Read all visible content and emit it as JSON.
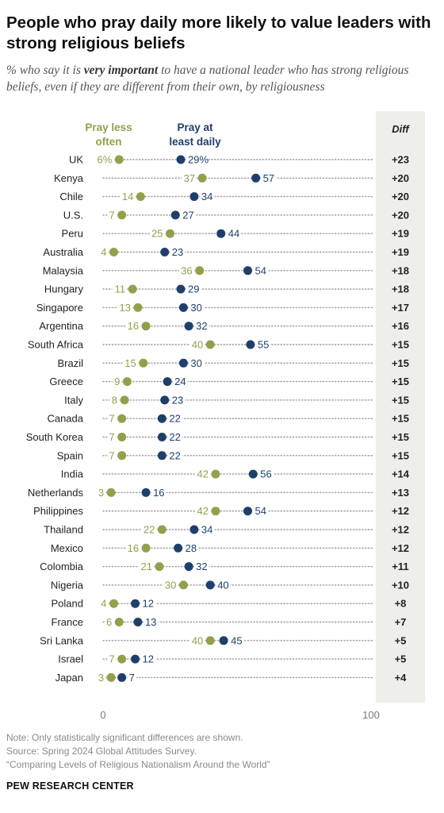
{
  "title": "People who pray daily more likely to value leaders with strong religious beliefs",
  "subtitle_prefix": "% who say it is ",
  "subtitle_emph": "very important",
  "subtitle_suffix": " to have a national leader who has strong religious beliefs, even if they are different from their own, by religiousness",
  "colors": {
    "less": "#959f4b",
    "daily": "#1f3f6b",
    "diff_bg": "#efefea"
  },
  "legend": {
    "less": [
      "Pray less",
      "often"
    ],
    "daily": [
      "Pray at",
      "least daily"
    ],
    "diff": "Diff"
  },
  "chart_data": {
    "type": "dot-plot",
    "xlim": [
      0,
      100
    ],
    "x_ticks": [
      "0",
      "100"
    ],
    "series": [
      {
        "name": "Pray less often",
        "key": "less"
      },
      {
        "name": "Pray at least daily",
        "key": "daily"
      }
    ],
    "rows": [
      {
        "country": "UK",
        "less": 6,
        "daily": 29,
        "less_label": "6%",
        "daily_label": "29%",
        "diff": "+23"
      },
      {
        "country": "Kenya",
        "less": 37,
        "daily": 57,
        "less_label": "37",
        "daily_label": "57",
        "diff": "+20"
      },
      {
        "country": "Chile",
        "less": 14,
        "daily": 34,
        "less_label": "14",
        "daily_label": "34",
        "diff": "+20"
      },
      {
        "country": "U.S.",
        "less": 7,
        "daily": 27,
        "less_label": "7",
        "daily_label": "27",
        "diff": "+20"
      },
      {
        "country": "Peru",
        "less": 25,
        "daily": 44,
        "less_label": "25",
        "daily_label": "44",
        "diff": "+19"
      },
      {
        "country": "Australia",
        "less": 4,
        "daily": 23,
        "less_label": "4",
        "daily_label": "23",
        "diff": "+19"
      },
      {
        "country": "Malaysia",
        "less": 36,
        "daily": 54,
        "less_label": "36",
        "daily_label": "54",
        "diff": "+18"
      },
      {
        "country": "Hungary",
        "less": 11,
        "daily": 29,
        "less_label": "11",
        "daily_label": "29",
        "diff": "+18"
      },
      {
        "country": "Singapore",
        "less": 13,
        "daily": 30,
        "less_label": "13",
        "daily_label": "30",
        "diff": "+17"
      },
      {
        "country": "Argentina",
        "less": 16,
        "daily": 32,
        "less_label": "16",
        "daily_label": "32",
        "diff": "+16"
      },
      {
        "country": "South Africa",
        "less": 40,
        "daily": 55,
        "less_label": "40",
        "daily_label": "55",
        "diff": "+15"
      },
      {
        "country": "Brazil",
        "less": 15,
        "daily": 30,
        "less_label": "15",
        "daily_label": "30",
        "diff": "+15"
      },
      {
        "country": "Greece",
        "less": 9,
        "daily": 24,
        "less_label": "9",
        "daily_label": "24",
        "diff": "+15"
      },
      {
        "country": "Italy",
        "less": 8,
        "daily": 23,
        "less_label": "8",
        "daily_label": "23",
        "diff": "+15"
      },
      {
        "country": "Canada",
        "less": 7,
        "daily": 22,
        "less_label": "7",
        "daily_label": "22",
        "diff": "+15"
      },
      {
        "country": "South Korea",
        "less": 7,
        "daily": 22,
        "less_label": "7",
        "daily_label": "22",
        "diff": "+15"
      },
      {
        "country": "Spain",
        "less": 7,
        "daily": 22,
        "less_label": "7",
        "daily_label": "22",
        "diff": "+15"
      },
      {
        "country": "India",
        "less": 42,
        "daily": 56,
        "less_label": "42",
        "daily_label": "56",
        "diff": "+14"
      },
      {
        "country": "Netherlands",
        "less": 3,
        "daily": 16,
        "less_label": "3",
        "daily_label": "16",
        "diff": "+13"
      },
      {
        "country": "Philippines",
        "less": 42,
        "daily": 54,
        "less_label": "42",
        "daily_label": "54",
        "diff": "+12"
      },
      {
        "country": "Thailand",
        "less": 22,
        "daily": 34,
        "less_label": "22",
        "daily_label": "34",
        "diff": "+12"
      },
      {
        "country": "Mexico",
        "less": 16,
        "daily": 28,
        "less_label": "16",
        "daily_label": "28",
        "diff": "+12"
      },
      {
        "country": "Colombia",
        "less": 21,
        "daily": 32,
        "less_label": "21",
        "daily_label": "32",
        "diff": "+11"
      },
      {
        "country": "Nigeria",
        "less": 30,
        "daily": 40,
        "less_label": "30",
        "daily_label": "40",
        "diff": "+10"
      },
      {
        "country": "Poland",
        "less": 4,
        "daily": 12,
        "less_label": "4",
        "daily_label": "12",
        "diff": "+8"
      },
      {
        "country": "France",
        "less": 6,
        "daily": 13,
        "less_label": "6",
        "daily_label": "13",
        "diff": "+7"
      },
      {
        "country": "Sri Lanka",
        "less": 40,
        "daily": 45,
        "less_label": "40",
        "daily_label": "45",
        "diff": "+5"
      },
      {
        "country": "Israel",
        "less": 7,
        "daily": 12,
        "less_label": "7",
        "daily_label": "12",
        "diff": "+5"
      },
      {
        "country": "Japan",
        "less": 3,
        "daily": 7,
        "less_label": "3",
        "daily_label": "7",
        "diff": "+4"
      }
    ]
  },
  "notes": {
    "note": "Note: Only statistically significant differences are shown.",
    "source": "Source: Spring 2024 Global Attitudes Survey.",
    "report": "“Comparing Levels of Religious Nationalism Around the World”"
  },
  "org": "PEW RESEARCH CENTER"
}
